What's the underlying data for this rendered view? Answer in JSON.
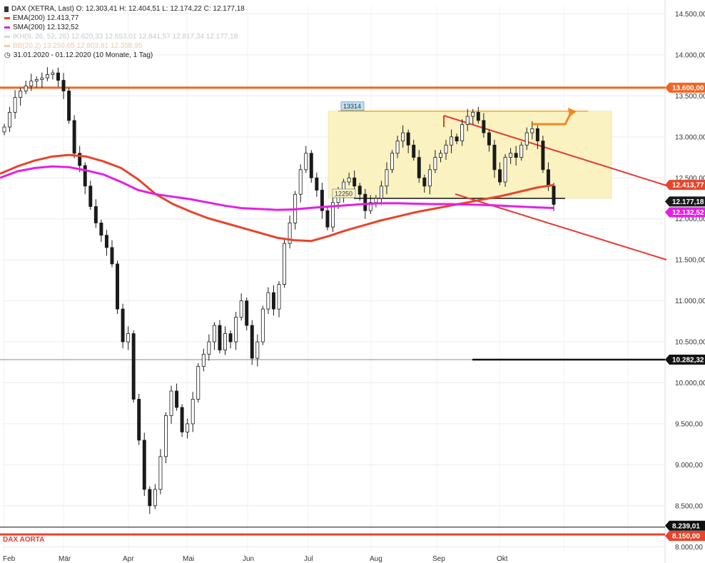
{
  "legend": {
    "main": "DAX (XETRA, Last)  O: 12.303,41  H: 12.404,51  L: 12.174,22  C: 12.177,18",
    "ema": "EMA(200)  12.413,77",
    "sma": "SMA(200)  12.132,52",
    "ikh": "IKH(9, 26, 52, 26)  12.620,33  12.653,01  12.841,57  12.817,34  12.177,18",
    "bb": "BB(20,2)  13.250,65  12.803,81  12.358,95",
    "period": "31.01.2020 - 01.12.2020  (10 Monate, 1 Tag)"
  },
  "colors": {
    "ema": "#e8442a",
    "sma": "#e61ee6",
    "resistance": "#f26522",
    "aorta": "#e8442a",
    "trend": "#e53b2f",
    "support_box": "#fbf2c2",
    "box_top": "#f5a623",
    "candle_up": "#ffffff",
    "candle_down": "#1a1a1a"
  },
  "annotations": {
    "box_high": "13314",
    "box_low": "12250",
    "aorta_label": "DAX AORTA"
  },
  "chart_data": {
    "type": "candlestick",
    "x_labels": [
      "Feb",
      "Mär",
      "Apr",
      "Mai",
      "Jun",
      "Jul",
      "Aug",
      "Sep",
      "Okt"
    ],
    "ylim": [
      7900,
      14800
    ],
    "y_ticks": [
      8000,
      8500,
      9000,
      9500,
      10000,
      10500,
      11000,
      11500,
      12000,
      12500,
      13000,
      13500,
      14000,
      14500
    ],
    "y_tick_labels": [
      "8.000,00",
      "8.500,00",
      "9.000,00",
      "9.500,00",
      "10.000,00",
      "10.500,00",
      "11.000,00",
      "11.500,00",
      "12.000,00",
      "12.500,00",
      "13.000,00",
      "13.500,00",
      "14.000,00",
      "14.500,00"
    ],
    "price_tags": [
      {
        "value": 13600,
        "label": "13.600,00",
        "color": "#f26522"
      },
      {
        "value": 12413.77,
        "label": "12.413,77",
        "color": "#e8442a"
      },
      {
        "value": 12177.18,
        "label": "12.177,18",
        "color": "#1a1a1a"
      },
      {
        "value": 12132.52,
        "label": "12.132,52",
        "color": "#e61ee6"
      },
      {
        "value": 10282.32,
        "label": "10.282,32",
        "color": "#111111"
      },
      {
        "value": 8239.01,
        "label": "8.239,01",
        "color": "#111111"
      },
      {
        "value": 8150,
        "label": "8.150,00",
        "color": "#e8442a"
      }
    ],
    "horizontal_lines": [
      {
        "value": 13600,
        "color": "#f26522"
      },
      {
        "value": 8150,
        "color": "#e8442a"
      },
      {
        "value": 10282.32,
        "color": "#888888"
      },
      {
        "value": 8239.01,
        "color": "#111111"
      }
    ],
    "closes": [
      13120,
      13300,
      13480,
      13560,
      13620,
      13680,
      13700,
      13720,
      13760,
      13780,
      13690,
      13560,
      13200,
      12800,
      12650,
      12400,
      12150,
      11950,
      11800,
      11650,
      11450,
      10900,
      10500,
      10600,
      9800,
      9300,
      8700,
      8500,
      8700,
      9100,
      9600,
      9900,
      9700,
      9400,
      9500,
      9800,
      10200,
      10350,
      10500,
      10700,
      10400,
      10600,
      10500,
      10800,
      11000,
      10700,
      10300,
      10500,
      10900,
      11100,
      10900,
      11200,
      11700,
      11950,
      12300,
      12600,
      12800,
      12500,
      12350,
      12100,
      11900,
      12200,
      12300,
      12450,
      12500,
      12400,
      12300,
      12100,
      12200,
      12250,
      12400,
      12600,
      12800,
      12950,
      13050,
      12900,
      12750,
      12500,
      12400,
      12600,
      12750,
      12800,
      12900,
      13000,
      12950,
      13150,
      13250,
      13300,
      13200,
      13050,
      12900,
      12600,
      12450,
      12750,
      12800,
      12750,
      12900,
      13050,
      13100,
      12950,
      12600,
      12400,
      12177
    ],
    "ema200": [
      12550,
      12640,
      12710,
      12760,
      12780,
      12760,
      12700,
      12620,
      12480,
      12300,
      12180,
      12090,
      12010,
      11950,
      11890,
      11830,
      11770,
      11740,
      11730,
      11790,
      11860,
      11920,
      11980,
      12030,
      12080,
      12120,
      12160,
      12200,
      12240,
      12280,
      12330,
      12380,
      12413.77
    ],
    "sma200": [
      12500,
      12580,
      12620,
      12640,
      12630,
      12590,
      12540,
      12450,
      12350,
      12300,
      12270,
      12240,
      12200,
      12160,
      12130,
      12120,
      12110,
      12115,
      12135,
      12150,
      12165,
      12180,
      12190,
      12190,
      12185,
      12180,
      12180,
      12175,
      12170,
      12160,
      12150,
      12140,
      12132.52
    ]
  }
}
